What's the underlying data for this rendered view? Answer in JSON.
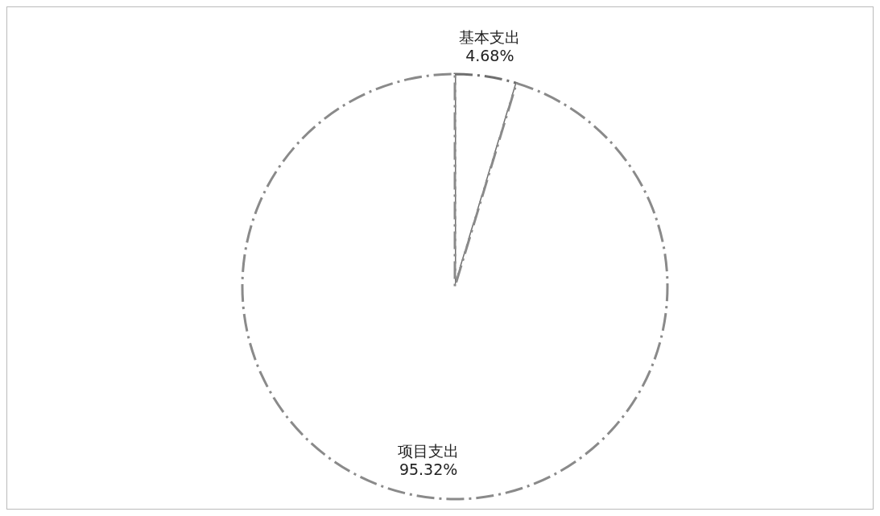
{
  "chart_data": {
    "type": "pie",
    "categories": [
      "基本支出",
      "项目支出"
    ],
    "values": [
      4.68,
      95.32
    ],
    "value_labels": [
      "4.68%",
      "95.32%"
    ],
    "colors": [
      "#6f6f6f",
      "#8a8a8a"
    ],
    "line_style": "dashed"
  }
}
